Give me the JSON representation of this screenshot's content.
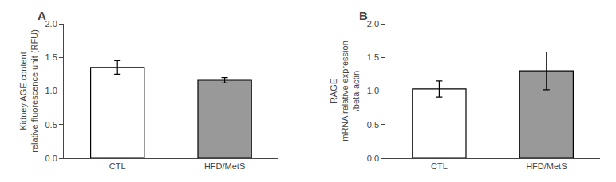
{
  "chart_data": [
    {
      "type": "bar",
      "title": "A",
      "categories": [
        "CTL",
        "HFD/MetS"
      ],
      "values": [
        1.35,
        1.16
      ],
      "errors": [
        0.1,
        0.04
      ],
      "colors": [
        "#ffffff",
        "#999999"
      ],
      "ylabel": "Kidney AGE content\nrelative fluorescence unit (RFU)",
      "ylim": [
        0,
        2.0
      ],
      "yticks": [
        {
          "value": 0.0,
          "label": "0.0"
        },
        0.5,
        {
          "value": 1.0,
          "label": "1.0"
        },
        1.5,
        {
          "value": 2.0,
          "label": "2.0"
        }
      ],
      "grid": false
    },
    {
      "type": "bar",
      "title": "B",
      "categories": [
        "CTL",
        "HFD/MetS"
      ],
      "values": [
        1.03,
        1.3
      ],
      "errors": [
        0.12,
        0.28
      ],
      "colors": [
        "#ffffff",
        "#999999"
      ],
      "ylabel": "RAGE\nmRNA relative expression\n/beta-actin",
      "ylim": [
        0,
        2.0
      ],
      "yticks": [
        {
          "value": 0.0,
          "label": "0.0"
        },
        0.5,
        {
          "value": 1.0,
          "label": "1.0"
        },
        1.5,
        {
          "value": 2.0,
          "label": "2.0"
        }
      ],
      "grid": false
    }
  ]
}
